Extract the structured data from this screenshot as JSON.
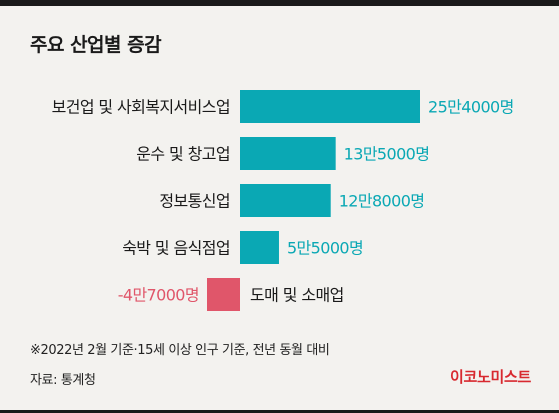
{
  "title": "주요 산업별 증감",
  "footnote": "※2022년 2월 기준·15세 이상 인구 기준, 전년 동월 대비",
  "source": "자료: 통계청",
  "logo": "이코노미스트",
  "colors": {
    "positive": "#0aa8b4",
    "negative": "#e0566a",
    "category_text": "#1a1a1a"
  },
  "chart_data": {
    "type": "bar",
    "orientation": "horizontal",
    "unit": "명",
    "categories": [
      "보건업 및 사회복지서비스업",
      "운수 및 창고업",
      "정보통신업",
      "숙박 및 음식점업",
      "도매 및 소매업"
    ],
    "values": [
      254000,
      135000,
      128000,
      55000,
      -47000
    ],
    "value_labels": [
      "25만4000명",
      "13만5000명",
      "12만8000명",
      "5만5000명",
      "-4만7000명"
    ],
    "xlim": [
      -47000,
      254000
    ],
    "grid": false,
    "legend": "none"
  }
}
